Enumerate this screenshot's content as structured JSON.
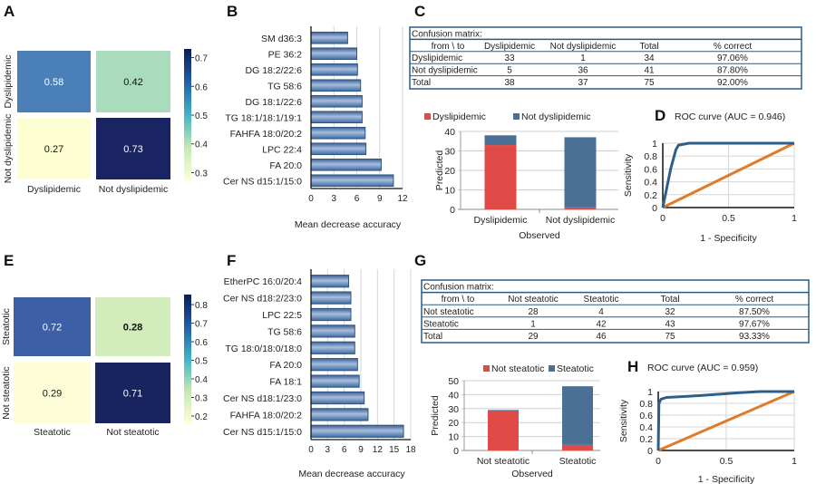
{
  "panels": {
    "A": "A",
    "B": "B",
    "C": "C",
    "D": "D",
    "E": "E",
    "F": "F",
    "G": "G",
    "H": "H"
  },
  "chart_data": [
    {
      "panel": "A",
      "type": "heatmap",
      "rows": [
        "Dyslipidemic",
        "Not dyslipidemic"
      ],
      "cols": [
        "Dyslipidemic",
        "Not dyslipidemic"
      ],
      "values": [
        [
          0.58,
          0.42
        ],
        [
          0.27,
          0.73
        ]
      ],
      "cell_labels": [
        [
          "0.58",
          "0.42"
        ],
        [
          "0.27",
          "0.73"
        ]
      ],
      "colors": [
        [
          "#4a7fb8",
          "#abdbbd"
        ],
        [
          "#fdfed2",
          "#1a2463"
        ]
      ],
      "label_colors": [
        [
          "#ffffff",
          "#111111"
        ],
        [
          "#111111",
          "#ffffff"
        ]
      ],
      "colorbar": {
        "range": [
          0.27,
          0.73
        ],
        "ticks": [
          "0.3",
          "0.4",
          "0.5",
          "0.6",
          "0.7"
        ],
        "colormap": [
          "#ffffd9",
          "#c7e9b4",
          "#41b6c4",
          "#225ea8",
          "#081d58"
        ]
      }
    },
    {
      "panel": "B",
      "type": "bar",
      "orientation": "horizontal",
      "categories": [
        "SM d36:3",
        "PE 36:2",
        "DG 18:2/22:6",
        "TG 58:6",
        "DG 18:1/22:6",
        "TG 18:1/18:1/19:1",
        "FAHFA 18:0/20:2",
        "LPC 22:4",
        "FA 20:0",
        "Cer NS d15:1/15:0"
      ],
      "values": [
        4.8,
        6.0,
        6.1,
        6.5,
        6.7,
        6.7,
        7.1,
        7.2,
        9.2,
        10.8
      ],
      "xlabel": "Mean decrease accuracy",
      "xlim": [
        0,
        12
      ],
      "xticks": [
        "0",
        "3",
        "6",
        "9",
        "12"
      ],
      "grid": true,
      "color": "#4f72a8"
    },
    {
      "panel": "C",
      "type": "table",
      "title": "Confusion matrix:",
      "header": [
        "from \\ to",
        "Dyslipidemic",
        "Not dyslipidemic",
        "Total",
        "% correct"
      ],
      "rows": [
        [
          "Dyslipidemic",
          "33",
          "1",
          "34",
          "97.06%"
        ],
        [
          "Not dyslipidemic",
          "5",
          "36",
          "41",
          "87.80%"
        ],
        [
          "Total",
          "38",
          "37",
          "75",
          "92.00%"
        ]
      ]
    },
    {
      "panel": "C",
      "type": "bar",
      "stacked": true,
      "categories": [
        "Dyslipidemic",
        "Not dyslipidemic"
      ],
      "series": [
        {
          "name": "Dyslipidemic",
          "values": [
            33,
            1
          ],
          "color": "#e04b47"
        },
        {
          "name": "Not dyslipidemic",
          "values": [
            5,
            36
          ],
          "color": "#4a7096"
        }
      ],
      "xlabel": "Observed",
      "ylabel": "Predicted",
      "ylim": [
        0,
        40
      ],
      "yticks": [
        "0",
        "10",
        "20",
        "30",
        "40"
      ],
      "legend": "top"
    },
    {
      "panel": "D",
      "type": "line",
      "title": "ROC curve (AUC = 0.946)",
      "xlabel": "1 - Specificity",
      "ylabel": "Sensitivity",
      "xlim": [
        0,
        1
      ],
      "ylim": [
        0,
        1
      ],
      "xticks": [
        "0",
        "0.5",
        "1"
      ],
      "yticks": [
        "0",
        "0.2",
        "0.4",
        "0.6",
        "0.8",
        "1"
      ],
      "grid": true,
      "series": [
        {
          "x": [
            0,
            0.02,
            0.06,
            0.1,
            0.12,
            0.2,
            1
          ],
          "y": [
            0,
            0.2,
            0.6,
            0.9,
            0.97,
            1,
            1
          ],
          "color": "#2e5f8a"
        },
        {
          "x": [
            0,
            1
          ],
          "y": [
            0,
            1
          ],
          "color": "#e07b2a"
        }
      ]
    },
    {
      "panel": "E",
      "type": "heatmap",
      "rows": [
        "Steatotic",
        "Not steatotic"
      ],
      "cols": [
        "Steatotic",
        "Not steatotic"
      ],
      "values": [
        [
          0.72,
          0.28
        ],
        [
          0.29,
          0.71
        ]
      ],
      "cell_labels": [
        [
          "0.72",
          "0.28"
        ],
        [
          "0.29",
          "0.71"
        ]
      ],
      "colors": [
        [
          "#3d5fa6",
          "#d3ecbb"
        ],
        [
          "#fdfed8",
          "#182460"
        ]
      ],
      "label_colors": [
        [
          "#ffffff",
          "#111111"
        ],
        [
          "#111111",
          "#ffffff"
        ]
      ],
      "colorbar": {
        "range": [
          0.156,
          0.854
        ],
        "ticks": [
          "0.2",
          "0.3",
          "0.4",
          "0.5",
          "0.6",
          "0.7",
          "0.8"
        ],
        "colormap": [
          "#ffffd9",
          "#c7e9b4",
          "#41b6c4",
          "#225ea8",
          "#081d58"
        ]
      }
    },
    {
      "panel": "F",
      "type": "bar",
      "orientation": "horizontal",
      "categories": [
        "EtherPC 16:0/20:4",
        "Cer NS d18:2/23:0",
        "LPC 22:5",
        "TG 58:6",
        "TG 18:0/18:0/18:0",
        "FA 20:0",
        "FA 18:1",
        "Cer NS d18:1/23:0",
        "FAHFA 18:0/20:2",
        "Cer NS d15:1/15:0"
      ],
      "values": [
        6.8,
        7.2,
        7.2,
        7.9,
        7.9,
        8.4,
        8.7,
        9.6,
        10.3,
        16.7
      ],
      "xlabel": "Mean decrease accuracy",
      "xlim": [
        0,
        18
      ],
      "xticks": [
        "0",
        "3",
        "6",
        "9",
        "12",
        "15",
        "18"
      ],
      "grid": true,
      "color": "#4f72a8"
    },
    {
      "panel": "G",
      "type": "table",
      "title": "Confusion matrix:",
      "header": [
        "from \\ to",
        "Not steatotic",
        "Steatotic",
        "Total",
        "% correct"
      ],
      "rows": [
        [
          "Not steatotic",
          "28",
          "4",
          "32",
          "87.50%"
        ],
        [
          "Steatotic",
          "1",
          "42",
          "43",
          "97.67%"
        ],
        [
          "Total",
          "29",
          "46",
          "75",
          "93.33%"
        ]
      ]
    },
    {
      "panel": "G",
      "type": "bar",
      "stacked": true,
      "categories": [
        "Not steatotic",
        "Steatotic"
      ],
      "series": [
        {
          "name": "Not steatotic",
          "values": [
            28,
            4
          ],
          "color": "#e04b47"
        },
        {
          "name": "Steatotic",
          "values": [
            1,
            42
          ],
          "color": "#4a7096"
        }
      ],
      "xlabel": "Observed",
      "ylabel": "Predicted",
      "ylim": [
        0,
        50
      ],
      "yticks": [
        "0",
        "10",
        "20",
        "30",
        "40",
        "50"
      ],
      "legend": "top"
    },
    {
      "panel": "H",
      "type": "line",
      "title": "ROC curve (AUC = 0.959)",
      "xlabel": "1 - Specificity",
      "ylabel": "Sensitivity",
      "xlim": [
        0,
        1
      ],
      "ylim": [
        0,
        1
      ],
      "xticks": [
        "0",
        "0.5",
        "1"
      ],
      "yticks": [
        "0",
        "0.2",
        "0.4",
        "0.6",
        "0.8",
        "1"
      ],
      "grid": true,
      "series": [
        {
          "x": [
            0,
            0.005,
            0.02,
            0.06,
            0.3,
            0.6,
            0.75,
            1
          ],
          "y": [
            0,
            0.8,
            0.87,
            0.9,
            0.93,
            0.98,
            1,
            1
          ],
          "color": "#2e5f8a"
        },
        {
          "x": [
            0,
            1
          ],
          "y": [
            0,
            1
          ],
          "color": "#e07b2a"
        }
      ]
    }
  ]
}
